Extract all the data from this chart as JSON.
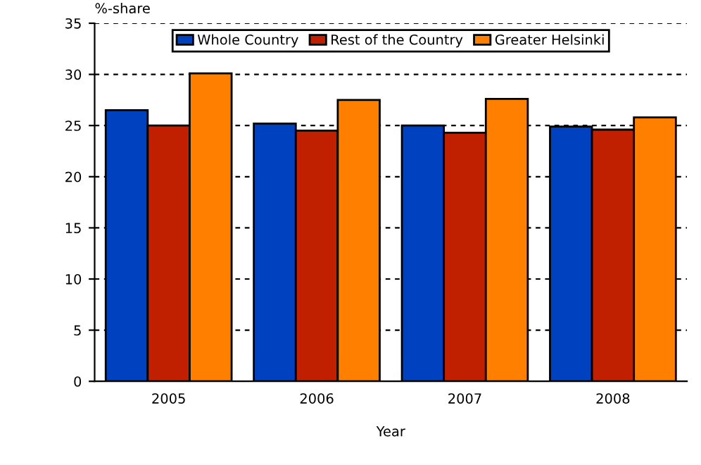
{
  "chart_data": {
    "type": "bar",
    "ylabel": "%-share",
    "xlabel": "Year",
    "categories": [
      "2005",
      "2006",
      "2007",
      "2008"
    ],
    "series": [
      {
        "name": "Whole Country",
        "color": "#0041c0",
        "values": [
          26.5,
          25.2,
          25.0,
          24.9
        ]
      },
      {
        "name": "Rest of the Country",
        "color": "#c02000",
        "values": [
          25.0,
          24.5,
          24.3,
          24.6
        ]
      },
      {
        "name": "Greater Helsinki",
        "color": "#ff8000",
        "values": [
          30.1,
          27.5,
          27.6,
          25.8
        ]
      }
    ],
    "ylim": [
      0,
      35
    ],
    "yticks": [
      0,
      5,
      10,
      15,
      20,
      25,
      30,
      35
    ],
    "grid": "y",
    "legend": "top"
  }
}
